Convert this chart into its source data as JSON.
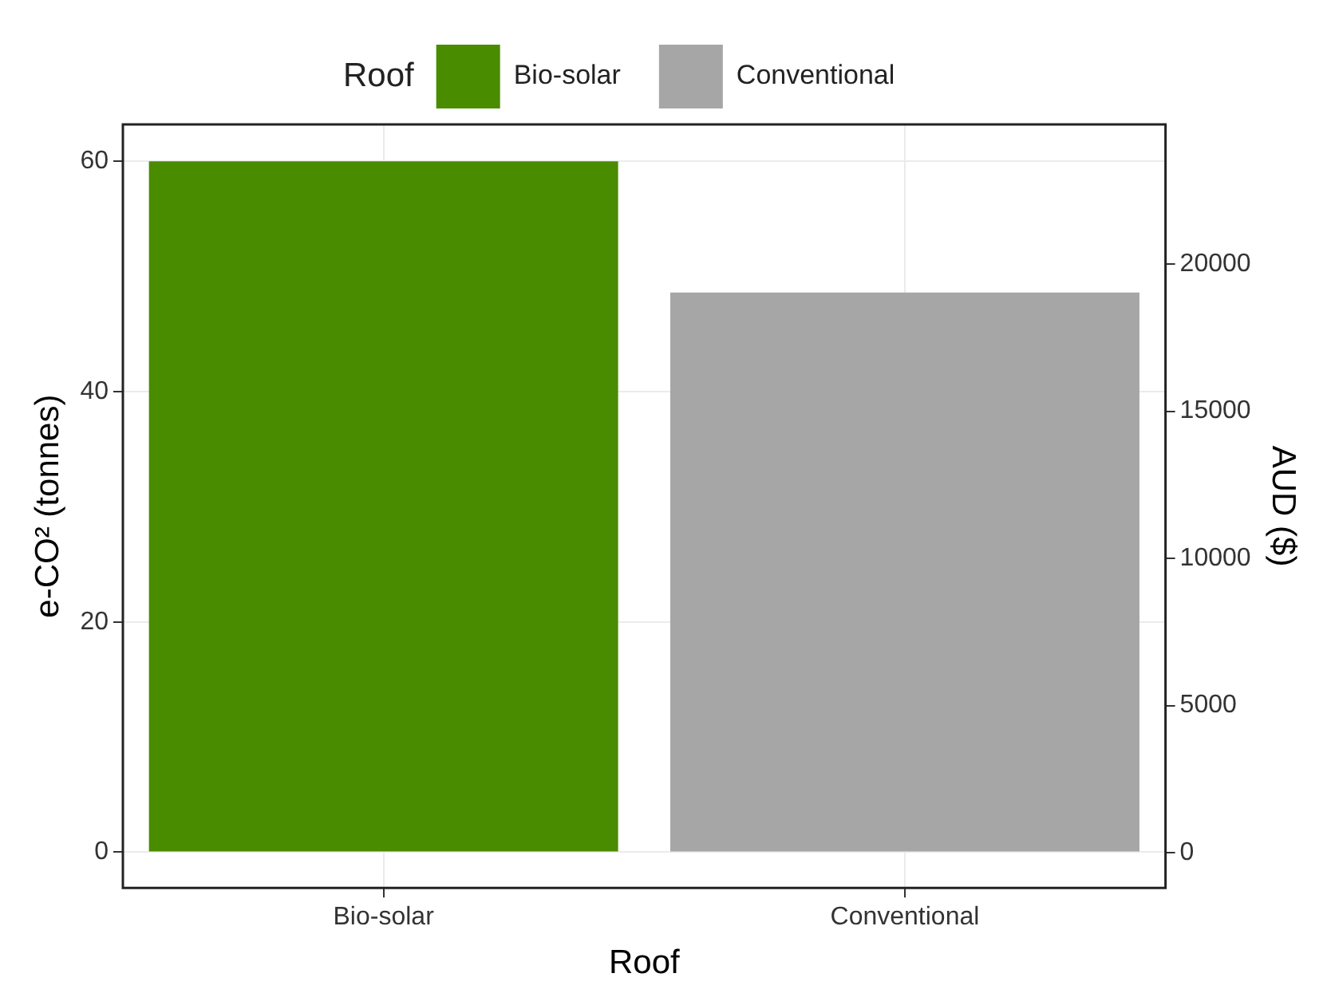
{
  "chart_data": {
    "type": "bar",
    "xlabel": "Roof",
    "ylabel": "e-CO² (tonnes)",
    "y2label": "AUD ($)",
    "legend_title": "Roof",
    "categories": [
      "Bio-solar",
      "Conventional"
    ],
    "series": [
      {
        "name": "Bio-solar",
        "color": "#4a8c00",
        "values": [
          60,
          null
        ]
      },
      {
        "name": "Conventional",
        "color": "#a6a6a6",
        "values": [
          null,
          48.6
        ]
      }
    ],
    "ylim": [
      -3.1,
      63.2
    ],
    "yticks": [
      0,
      20,
      40,
      60
    ],
    "y2lim": [
      -1200,
      24750
    ],
    "y2ticks": [
      0,
      5000,
      10000,
      15000,
      20000
    ],
    "grid": true,
    "legend": "top"
  }
}
